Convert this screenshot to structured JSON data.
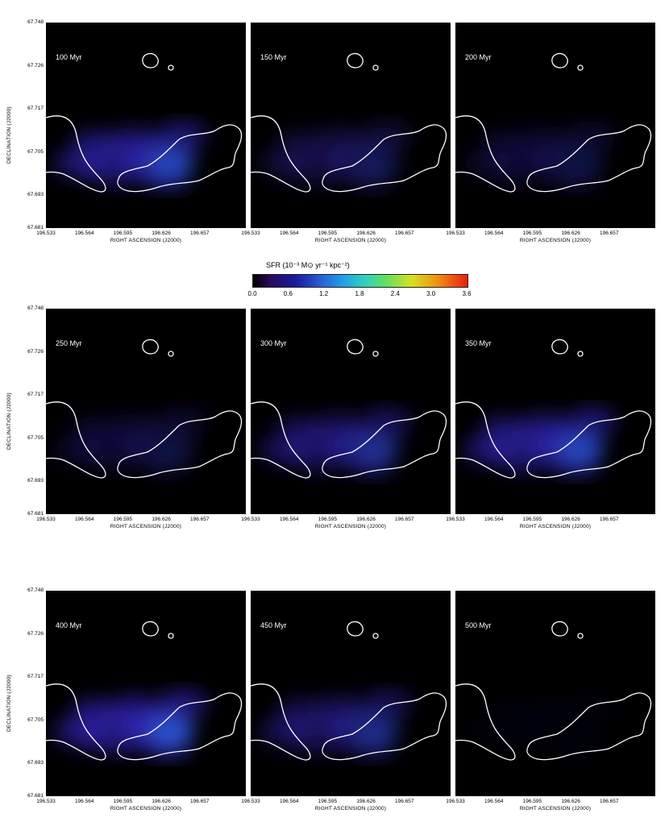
{
  "rows": [
    {
      "panels": [
        "100 Myr",
        "150 Myr",
        "200 Myr"
      ]
    },
    {
      "panels": [
        "250 Myr",
        "300 Myr",
        "350 Myr"
      ]
    },
    {
      "panels": [
        "400 Myr",
        "450 Myr",
        "500 Myr"
      ]
    }
  ],
  "axes": {
    "y_label": "DECLINATION (J2000)",
    "x_label": "RIGHT ASCENSION (J2000)",
    "y_ticks": [
      "67.748",
      "67.726",
      "67.717",
      "67.705",
      "67.693",
      "67.681"
    ],
    "x_ticks_first": [
      "196.533",
      "196.564",
      "196.595",
      "196.626",
      "196.657"
    ],
    "x_ticks_other": [
      "196.533",
      "196.564",
      "196.595",
      "196.626",
      "196.657"
    ]
  },
  "colorbar": {
    "title": "SFR (10⁻³ M⊙ yr⁻¹ kpc⁻²)",
    "ticks": [
      "0.0",
      "0.6",
      "1.2",
      "1.8",
      "2.4",
      "3.0",
      "3.6"
    ]
  },
  "colors": {
    "background": "#000000",
    "contour": "#ffffff"
  }
}
